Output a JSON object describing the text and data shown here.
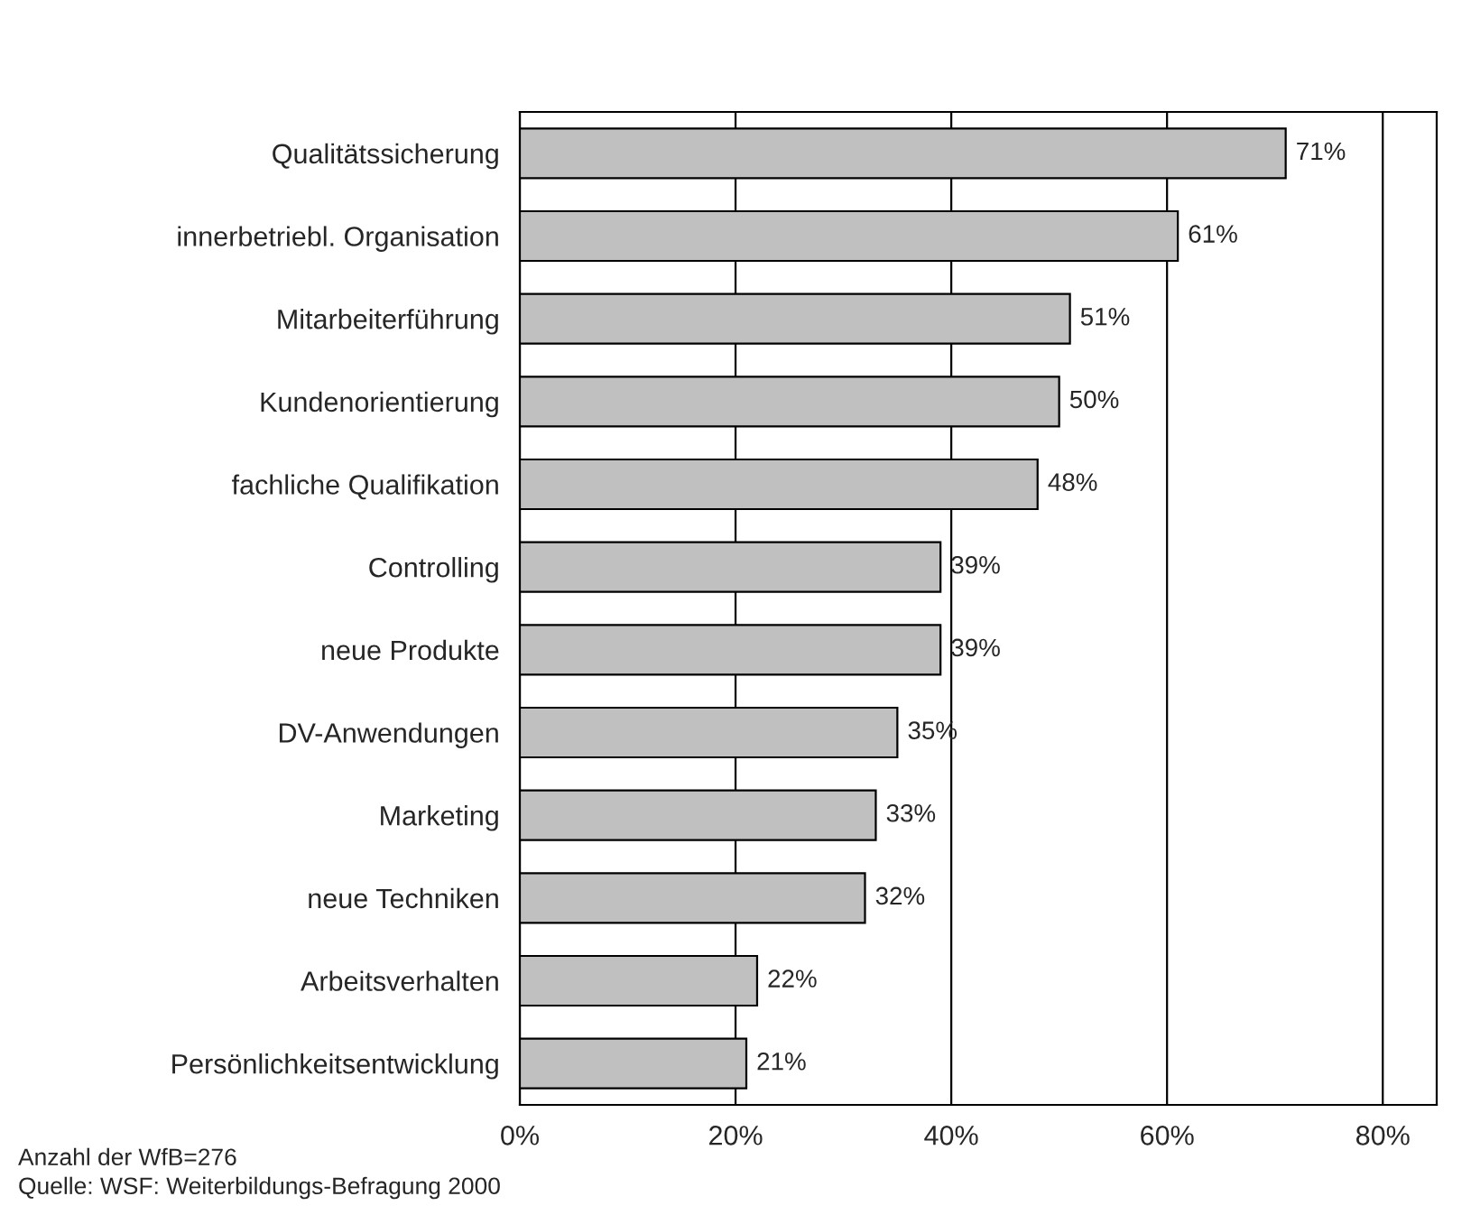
{
  "chart_data": {
    "type": "bar",
    "orientation": "horizontal",
    "categories": [
      "Qualitätssicherung",
      "innerbetriebl. Organisation",
      "Mitarbeiterführung",
      "Kundenorientierung",
      "fachliche Qualifikation",
      "Controlling",
      "neue Produkte",
      "DV-Anwendungen",
      "Marketing",
      "neue Techniken",
      "Arbeitsverhalten",
      "Persönlichkeitsentwicklung"
    ],
    "values": [
      71,
      61,
      51,
      50,
      48,
      39,
      39,
      35,
      33,
      32,
      22,
      21
    ],
    "value_labels": [
      "71%",
      "61%",
      "51%",
      "50%",
      "48%",
      "39%",
      "39%",
      "35%",
      "33%",
      "32%",
      "22%",
      "21%"
    ],
    "color": "#c0c0c0",
    "xlim": [
      0,
      85
    ],
    "xticks": [
      {
        "value": 0,
        "label": "0%"
      },
      {
        "value": 20,
        "label": "20%"
      },
      {
        "value": 40,
        "label": "40%"
      },
      {
        "value": 60,
        "label": "60%"
      },
      {
        "value": 80,
        "label": "80%"
      }
    ],
    "grid": "x",
    "annotations": [
      "Anzahl der WfB=276",
      "Quelle: WSF: Weiterbildungs-Befragung 2000"
    ]
  }
}
